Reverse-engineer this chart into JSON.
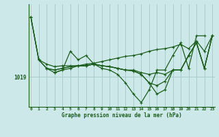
{
  "xlabel": "Graphe pression niveau de la mer (hPa)",
  "background_color": "#cce8e8",
  "line_color": "#1a5c1a",
  "grid_color": "#aacccc",
  "ylim": [
    1015.5,
    1027.5
  ],
  "xlim": [
    -0.3,
    23.3
  ],
  "ytick_val": 1019,
  "series": [
    {
      "start": 0,
      "values": [
        1026.0,
        1021.0,
        1020.5,
        1020.2,
        1020.3,
        1020.3,
        1020.3,
        1020.5,
        1020.6,
        1020.8,
        1021.0,
        1021.2,
        1021.4,
        1021.5,
        1021.7,
        1022.0,
        1022.2,
        1022.3,
        1022.5,
        1022.8,
        1022.3,
        1023.2,
        1022.0,
        1023.8
      ]
    },
    {
      "start": 0,
      "values": [
        1026.0,
        1021.0,
        1020.0,
        1019.8,
        1020.0,
        1020.2,
        1020.3,
        1020.3,
        1020.5,
        1020.3,
        1020.2,
        1020.0,
        1019.8,
        1019.8,
        1019.5,
        1019.3,
        1019.5,
        1019.3,
        1019.8,
        1019.8,
        1021.5,
        1023.0,
        1020.0,
        1023.8
      ]
    },
    {
      "start": 0,
      "values": [
        1026.0,
        1021.0,
        1020.0,
        1019.8,
        1020.0,
        1020.2,
        1020.3,
        1020.3,
        1020.5,
        1020.3,
        1020.2,
        1020.0,
        1019.8,
        1019.7,
        1019.3,
        1018.3,
        1018.0,
        1018.5,
        1019.8,
        1019.8,
        1021.5,
        1023.0,
        1020.0,
        1023.8
      ]
    },
    {
      "start": 2,
      "values": [
        1020.0,
        1019.5,
        1019.8,
        1020.0,
        1020.3,
        1020.3,
        1020.5,
        1020.3,
        1020.2,
        1020.0,
        1019.8,
        1019.7,
        1019.3,
        1018.3,
        1017.0,
        1017.5,
        1019.8,
        1019.8,
        1021.5,
        1023.0,
        1020.0,
        1023.8
      ]
    },
    {
      "start": 3,
      "values": [
        1019.5,
        1019.8,
        1022.0,
        1021.0,
        1021.5,
        1020.5,
        1020.0,
        1019.8,
        1019.3,
        1018.3,
        1017.0,
        1016.0,
        1017.5,
        1019.8,
        1019.8,
        1021.5,
        1023.0,
        1020.0,
        1023.8,
        1023.8
      ]
    }
  ]
}
